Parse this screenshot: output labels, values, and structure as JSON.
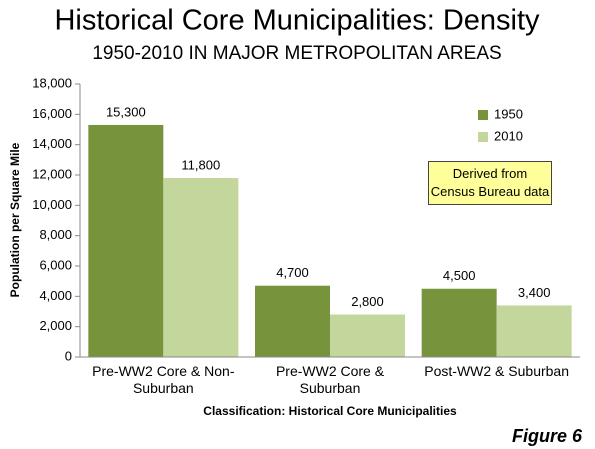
{
  "chart_data": {
    "type": "bar",
    "title": "Historical Core Municipalities: Density",
    "subtitle": "1950-2010 IN MAJOR METROPOLITAN AREAS",
    "categories": [
      "Pre-WW2 Core & Non-Suburban",
      "Pre-WW2 Core & Suburban",
      "Post-WW2 & Suburban"
    ],
    "series": [
      {
        "name": "1950",
        "color": "#77933c",
        "values": [
          15300,
          4700,
          4500
        ],
        "value_labels": [
          "15,300",
          "4,700",
          "4,500"
        ]
      },
      {
        "name": "2010",
        "color": "#c3d69b",
        "values": [
          11800,
          2800,
          3400
        ],
        "value_labels": [
          "11,800",
          "2,800",
          "3,400"
        ]
      }
    ],
    "ylim": [
      0,
      18000
    ],
    "yticks": [
      0,
      {
        "value": 2000,
        "label": "2,000"
      },
      {
        "value": 4000,
        "label": "4,000"
      },
      {
        "value": 6000,
        "label": "6,000"
      },
      {
        "value": 8000,
        "label": "8,000"
      },
      {
        "value": 10000,
        "label": "10,000"
      },
      {
        "value": 12000,
        "label": "12,000"
      },
      {
        "value": 14000,
        "label": "14,000"
      },
      {
        "value": 16000,
        "label": "16,000"
      },
      {
        "value": 18000,
        "label": "18,000"
      }
    ],
    "ylabel": "Population per Square Mile",
    "xlabel": "Classification: Historical Core Municipalities",
    "annotation": "Derived from Census Bureau data",
    "figure_label": "Figure 6",
    "grid": false
  }
}
